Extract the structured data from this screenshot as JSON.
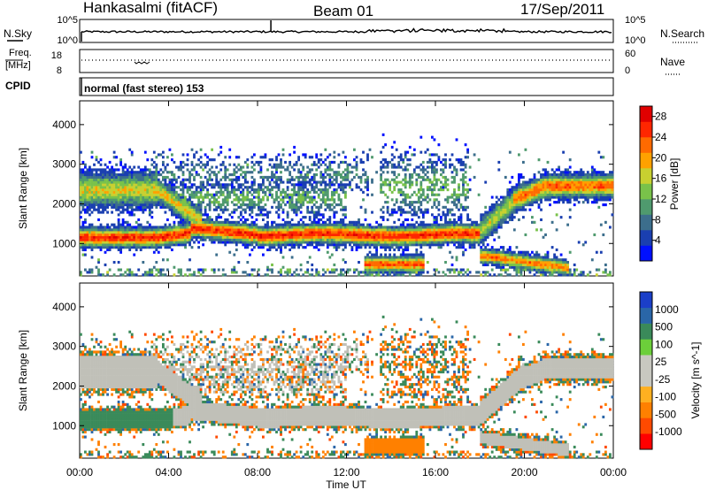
{
  "header": {
    "site": "Hankasalmi (fitACF)",
    "beam": "Beam 01",
    "date": "17/Sep/2011"
  },
  "noise_panel": {
    "left_label": "N.Sky",
    "right_label": "N.Search",
    "left_ticks": [
      "10^5",
      "10^0"
    ],
    "right_ticks": [
      "10^5",
      "10^0"
    ]
  },
  "freq_panel": {
    "left_label_top": "Freq.",
    "left_label_bottom": "[MHz]",
    "right_label": "Nave",
    "left_ticks": [
      "18",
      "8"
    ],
    "right_ticks": [
      "60",
      "0"
    ]
  },
  "cpid": {
    "label": "CPID",
    "text": "normal (fast stereo) 153"
  },
  "colors": {
    "power_scale": [
      "#0010ff",
      "#1a3fb0",
      "#3c6e8c",
      "#4f9a6e",
      "#79c24a",
      "#c8d030",
      "#ffa100",
      "#ff6a00",
      "#ff2600",
      "#e00000"
    ],
    "velocity_scale": [
      "#1b3fc8",
      "#2a66a8",
      "#3a8a5a",
      "#6ccf3a",
      "#c8c8c0",
      "#c8c8c0",
      "#ffb020",
      "#ff8000",
      "#ff4a00",
      "#ff0000"
    ],
    "ground_scatter": "#c0c0b8"
  },
  "chart_data": [
    {
      "type": "heatmap",
      "title": "",
      "xlabel": "Time UT",
      "ylabel": "Slant Range [km]",
      "x_ticks": [
        "00:00",
        "04:00",
        "08:00",
        "12:00",
        "16:00",
        "20:00",
        "00:00"
      ],
      "xlim_hours": [
        0,
        24
      ],
      "y_ticks": [
        1000,
        2000,
        3000,
        4000
      ],
      "ylim": [
        180,
        4600
      ],
      "colorbar": {
        "label": "Power [dB]",
        "ticks": [
          "4",
          "8",
          "12",
          "16",
          "20",
          "24",
          "28"
        ],
        "range": [
          0,
          30
        ]
      },
      "features": [
        {
          "name": "main_band",
          "t_start": 0,
          "t_end": 18,
          "range_km": 1150,
          "peak_db": 26
        },
        {
          "name": "upper_band",
          "t_start": 0,
          "t_end": 3.5,
          "range_km": 2350,
          "peak_db": 18
        },
        {
          "name": "evening_band",
          "t_start": 18,
          "t_end": 24,
          "range_km": 2450,
          "peak_db": 22
        },
        {
          "name": "near_echo",
          "t_start": 12.8,
          "t_end": 15.5,
          "range_km": 480,
          "peak_db": 24
        }
      ]
    },
    {
      "type": "heatmap",
      "title": "",
      "xlabel": "Time UT",
      "ylabel": "Slant Range [km]",
      "x_ticks": [
        "00:00",
        "04:00",
        "08:00",
        "12:00",
        "16:00",
        "20:00",
        "00:00"
      ],
      "xlim_hours": [
        0,
        24
      ],
      "y_ticks": [
        1000,
        2000,
        3000,
        4000
      ],
      "ylim": [
        180,
        4600
      ],
      "colorbar": {
        "label": "Velocity [m s^-1]",
        "ticks": [
          "1000",
          "500",
          "100",
          "25",
          "-25",
          "-100",
          "-500",
          "-1000"
        ],
        "range": [
          -1000,
          1000
        ]
      },
      "features": [
        {
          "name": "ground_scatter_band",
          "t_start": 4,
          "t_end": 18,
          "range_km": 1150
        },
        {
          "name": "positive_patch",
          "t_start": 0,
          "t_end": 4,
          "range_km": 1250,
          "velocity_ms": 100
        },
        {
          "name": "negative_patch",
          "t_start": 12.8,
          "t_end": 15.5,
          "range_km": 480,
          "velocity_ms": -200
        }
      ]
    }
  ]
}
